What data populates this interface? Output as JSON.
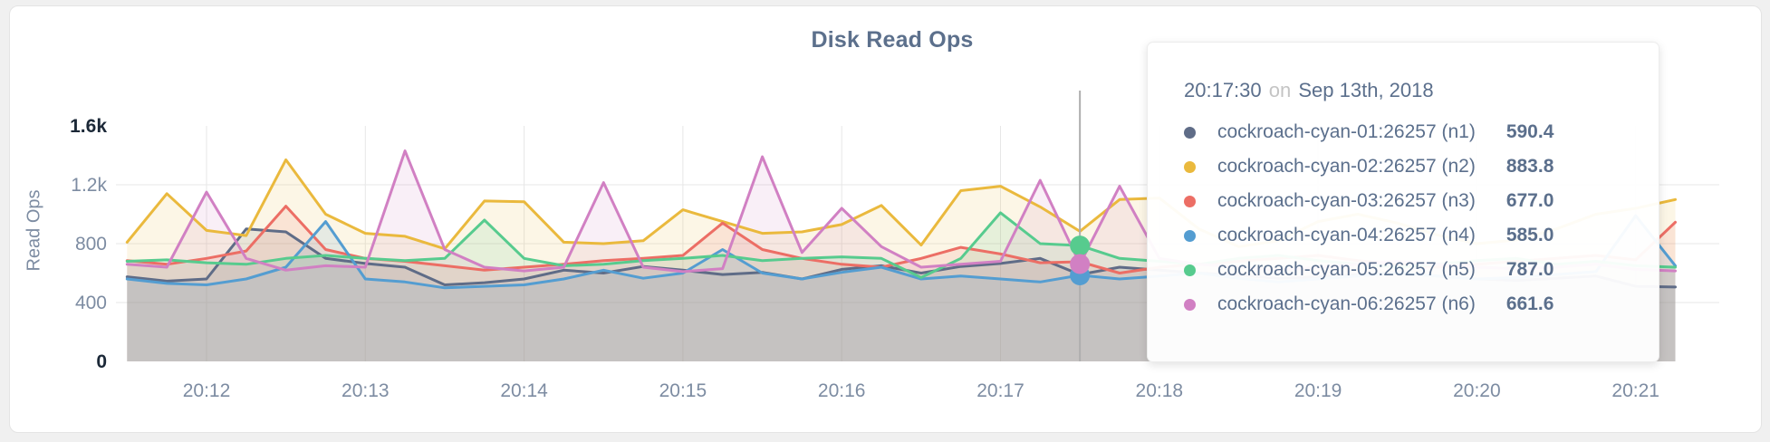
{
  "page": {
    "background": "#f0f0f0",
    "card_background": "#ffffff"
  },
  "chart": {
    "title": "Disk Read Ops",
    "ylabel": "Read Ops"
  },
  "tooltip": {
    "time": "20:17:30",
    "preposition": "on",
    "date": "Sep 13th, 2018",
    "rows": [
      {
        "label": "cockroach-cyan-01:26257 (n1)",
        "value": "590.4",
        "color": "#5f6c87"
      },
      {
        "label": "cockroach-cyan-02:26257 (n2)",
        "value": "883.8",
        "color": "#eab93d"
      },
      {
        "label": "cockroach-cyan-03:26257 (n3)",
        "value": "677.0",
        "color": "#ec6e65"
      },
      {
        "label": "cockroach-cyan-04:26257 (n4)",
        "value": "585.0",
        "color": "#549dd1"
      },
      {
        "label": "cockroach-cyan-05:26257 (n5)",
        "value": "787.0",
        "color": "#57cb8e"
      },
      {
        "label": "cockroach-cyan-06:26257 (n6)",
        "value": "661.6",
        "color": "#d180c3"
      }
    ]
  },
  "chart_data": {
    "type": "line",
    "title": "Disk Read Ops",
    "xlabel": "",
    "ylabel": "Read Ops",
    "ylim": [
      0,
      1600
    ],
    "grid": true,
    "legend_position": "tooltip",
    "y_ticks": [
      "0",
      "400",
      "800",
      "1.2k",
      "1.6k"
    ],
    "y_tick_values": [
      0,
      400,
      800,
      1200,
      1600
    ],
    "x_ticks": [
      "20:12",
      "20:13",
      "20:14",
      "20:15",
      "20:16",
      "20:17",
      "20:18",
      "20:19",
      "20:20",
      "20:21"
    ],
    "x": [
      "20:11:30",
      "20:11:45",
      "20:12:00",
      "20:12:15",
      "20:12:30",
      "20:12:45",
      "20:13:00",
      "20:13:15",
      "20:13:30",
      "20:13:45",
      "20:14:00",
      "20:14:15",
      "20:14:30",
      "20:14:45",
      "20:15:00",
      "20:15:15",
      "20:15:30",
      "20:15:45",
      "20:16:00",
      "20:16:15",
      "20:16:30",
      "20:16:45",
      "20:17:00",
      "20:17:15",
      "20:17:30",
      "20:17:45",
      "20:18:00",
      "20:18:15",
      "20:18:30",
      "20:18:45",
      "20:19:00",
      "20:19:15",
      "20:19:30",
      "20:19:45",
      "20:20:00",
      "20:20:15",
      "20:20:30",
      "20:20:45",
      "20:21:00",
      "20:21:15"
    ],
    "series": [
      {
        "name": "cockroach-cyan-01:26257 (n1)",
        "color": "#5f6c87",
        "values": [
          575,
          545,
          560,
          900,
          880,
          700,
          665,
          640,
          520,
          535,
          560,
          620,
          600,
          645,
          620,
          590,
          605,
          560,
          625,
          650,
          600,
          645,
          665,
          700,
          590.4,
          640,
          620,
          600,
          585,
          565,
          575,
          590,
          600,
          580,
          560,
          550,
          565,
          580,
          510,
          505
        ]
      },
      {
        "name": "cockroach-cyan-02:26257 (n2)",
        "color": "#eab93d",
        "values": [
          810,
          1140,
          890,
          855,
          1370,
          1000,
          870,
          850,
          765,
          1090,
          1085,
          810,
          800,
          820,
          1030,
          950,
          870,
          880,
          930,
          1060,
          790,
          1160,
          1190,
          1050,
          883.8,
          1100,
          1110,
          900,
          780,
          820,
          950,
          1000,
          940,
          860,
          800,
          825,
          900,
          1000,
          1040,
          1100
        ]
      },
      {
        "name": "cockroach-cyan-03:26257 (n3)",
        "color": "#ec6e65",
        "values": [
          685,
          660,
          700,
          750,
          1055,
          760,
          700,
          680,
          650,
          620,
          640,
          660,
          685,
          700,
          720,
          940,
          760,
          700,
          660,
          640,
          700,
          775,
          730,
          670,
          677,
          600,
          640,
          660,
          680,
          700,
          720,
          685,
          660,
          640,
          660,
          680,
          700,
          720,
          690,
          945
        ]
      },
      {
        "name": "cockroach-cyan-04:26257 (n4)",
        "color": "#549dd1",
        "values": [
          560,
          530,
          520,
          560,
          640,
          950,
          560,
          540,
          500,
          510,
          520,
          560,
          620,
          565,
          600,
          760,
          600,
          560,
          605,
          640,
          560,
          580,
          560,
          540,
          585,
          560,
          580,
          600,
          565,
          540,
          560,
          580,
          600,
          580,
          560,
          570,
          590,
          610,
          990,
          650
        ]
      },
      {
        "name": "cockroach-cyan-05:26257 (n5)",
        "color": "#57cb8e",
        "values": [
          680,
          690,
          670,
          660,
          700,
          720,
          700,
          685,
          700,
          960,
          700,
          650,
          660,
          685,
          700,
          720,
          685,
          700,
          710,
          700,
          570,
          700,
          1010,
          800,
          787,
          700,
          680,
          660,
          700,
          720,
          685,
          660,
          640,
          660,
          685,
          700,
          660,
          680,
          650,
          640
        ]
      },
      {
        "name": "cockroach-cyan-06:26257 (n6)",
        "color": "#d180c3",
        "values": [
          660,
          640,
          1150,
          700,
          620,
          650,
          640,
          1430,
          760,
          640,
          615,
          640,
          1215,
          640,
          610,
          630,
          1390,
          740,
          1040,
          780,
          640,
          660,
          680,
          1230,
          661.6,
          1190,
          700,
          660,
          640,
          620,
          640,
          660,
          680,
          660,
          640,
          630,
          640,
          660,
          625,
          615
        ]
      }
    ],
    "hover": {
      "time": "20:17:30",
      "x_index": 24,
      "guideline": true,
      "dot_series_indexes": [
        3,
        4,
        5
      ]
    }
  }
}
